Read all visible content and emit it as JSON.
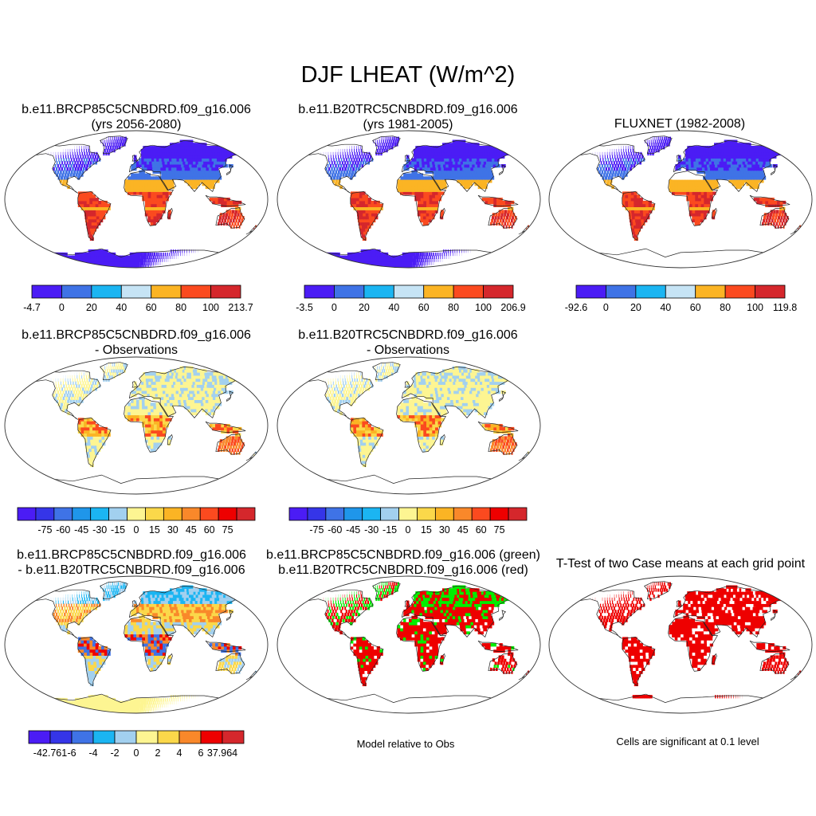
{
  "title": "DJF LHEAT (W/m^2)",
  "land_palette": {
    "abs": [
      "#4b1cf5",
      "#3f73e6",
      "#1bb5f2",
      "#c6e4f5",
      "#fbb424",
      "#fb4a1f",
      "#d5272c"
    ],
    "diff": [
      "#4b1cf5",
      "#3535e8",
      "#3f73e6",
      "#1f96ea",
      "#1bb5f2",
      "#a2d0ef",
      "#fdf592",
      "#fbd84a",
      "#fbb424",
      "#f9882a",
      "#fb4a1f",
      "#ee0000",
      "#d5272c"
    ],
    "bias_diff": [
      "#4b1cf5",
      "#3535e8",
      "#3f73e6",
      "#1bb5f2",
      "#a2d0ef",
      "#fdf592",
      "#fbd84a",
      "#f9882a",
      "#ee0000",
      "#d5272c"
    ]
  },
  "panels": [
    {
      "id": "case1",
      "title_lines": [
        "b.e11.BRCP85C5CNBDRD.f09_g16.006",
        "(yrs 2056-2080)"
      ],
      "map_style": "abs",
      "colorbar": {
        "colors": [
          "#4b1cf5",
          "#3f73e6",
          "#1bb5f2",
          "#c6e4f5",
          "#fbb424",
          "#fb4a1f",
          "#d5272c"
        ],
        "labels": [
          "-4.7",
          "0",
          "20",
          "40",
          "60",
          "80",
          "100",
          "213.7"
        ]
      }
    },
    {
      "id": "case2",
      "title_lines": [
        "b.e11.B20TRC5CNBDRD.f09_g16.006",
        "(yrs 1981-2005)"
      ],
      "map_style": "abs",
      "colorbar": {
        "colors": [
          "#4b1cf5",
          "#3f73e6",
          "#1bb5f2",
          "#c6e4f5",
          "#fbb424",
          "#fb4a1f",
          "#d5272c"
        ],
        "labels": [
          "-3.5",
          "0",
          "20",
          "40",
          "60",
          "80",
          "100",
          "206.9"
        ]
      }
    },
    {
      "id": "obs",
      "title_lines": [
        "FLUXNET (1982-2008)"
      ],
      "map_style": "obs",
      "colorbar": {
        "colors": [
          "#4b1cf5",
          "#3f73e6",
          "#1bb5f2",
          "#c6e4f5",
          "#fbb424",
          "#fb4a1f",
          "#d5272c"
        ],
        "labels": [
          "-92.6",
          "0",
          "20",
          "40",
          "60",
          "80",
          "100",
          "119.8"
        ]
      }
    },
    {
      "id": "case1-obs",
      "title_lines": [
        "b.e11.BRCP85C5CNBDRD.f09_g16.006",
        "- Observations"
      ],
      "map_style": "bias",
      "colorbar": {
        "colors": [
          "#4b1cf5",
          "#3535e8",
          "#3f73e6",
          "#1f96ea",
          "#1bb5f2",
          "#a2d0ef",
          "#fdf592",
          "#fbd84a",
          "#fbb424",
          "#f9882a",
          "#fb4a1f",
          "#ee0000",
          "#d5272c"
        ],
        "labels": [
          "-75",
          "-60",
          "-45",
          "-30",
          "-15",
          "0",
          "15",
          "30",
          "45",
          "60",
          "75"
        ]
      }
    },
    {
      "id": "case2-obs",
      "title_lines": [
        "b.e11.B20TRC5CNBDRD.f09_g16.006",
        "- Observations"
      ],
      "map_style": "bias",
      "colorbar": {
        "colors": [
          "#4b1cf5",
          "#3535e8",
          "#3f73e6",
          "#1f96ea",
          "#1bb5f2",
          "#a2d0ef",
          "#fdf592",
          "#fbd84a",
          "#fbb424",
          "#f9882a",
          "#fb4a1f",
          "#ee0000",
          "#d5272c"
        ],
        "labels": [
          "-75",
          "-60",
          "-45",
          "-30",
          "-15",
          "0",
          "15",
          "30",
          "45",
          "60",
          "75"
        ]
      }
    },
    {
      "id": "case-diff",
      "title_lines": [
        "b.e11.BRCP85C5CNBDRD.f09_g16.006",
        "- b.e11.B20TRC5CNBDRD.f09_g16.006"
      ],
      "map_style": "diff",
      "colorbar": {
        "colors": [
          "#4b1cf5",
          "#3535e8",
          "#3f73e6",
          "#1bb5f2",
          "#a2d0ef",
          "#fdf592",
          "#fbd84a",
          "#f9882a",
          "#ee0000",
          "#d5272c"
        ],
        "labels": [
          "-42.761",
          "-6",
          "-4",
          "-2",
          "0",
          "2",
          "4",
          "6",
          "37.964"
        ]
      }
    },
    {
      "id": "closer",
      "title_lines": [
        "b.e11.BRCP85C5CNBDRD.f09_g16.006 (green)",
        "b.e11.B20TRC5CNBDRD.f09_g16.006 (red)"
      ],
      "map_style": "greenred",
      "note": "Model relative to Obs",
      "colors": {
        "green": "#00ee00",
        "red": "#ee0000"
      }
    },
    {
      "id": "ttest",
      "title_lines": [
        "T-Test of two Case means at each grid point"
      ],
      "map_style": "ttest",
      "note": "Cells are significant at 0.1 level",
      "colors": {
        "red": "#ee0000"
      }
    }
  ]
}
